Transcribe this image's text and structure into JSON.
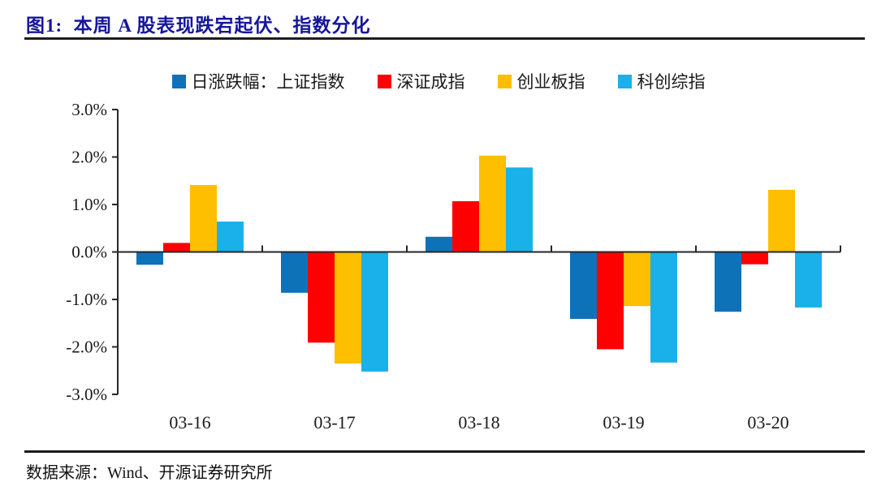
{
  "figure": {
    "title": "图1:  本周 A 股表现跌宕起伏、指数分化",
    "title_color": "#16169b",
    "rule_color": "#1c1c1c",
    "source": "数据来源：Wind、开源证券研究所"
  },
  "chart_data": {
    "type": "bar",
    "title": "图1: 本周 A 股表现跌宕起伏、指数分化",
    "categories": [
      "03-16",
      "03-17",
      "03-18",
      "03-19",
      "03-20"
    ],
    "series": [
      {
        "name": "日涨跌幅：上证指数",
        "color": "#0e72b9",
        "values": [
          -0.27,
          -0.86,
          0.32,
          -1.41,
          -1.26
        ]
      },
      {
        "name": "深证成指",
        "color": "#fd0100",
        "values": [
          0.19,
          -1.91,
          1.07,
          -2.05,
          -0.26
        ]
      },
      {
        "name": "创业板指",
        "color": "#fdbf00",
        "values": [
          1.41,
          -2.35,
          2.03,
          -1.14,
          1.31
        ]
      },
      {
        "name": "科创综指",
        "color": "#1ab0e9",
        "values": [
          0.64,
          -2.52,
          1.78,
          -2.33,
          -1.17
        ]
      }
    ],
    "xlabel": "",
    "ylabel": "",
    "ylim": [
      -3.0,
      3.0
    ],
    "ytick_labels": [
      "3.0%",
      "2.0%",
      "1.0%",
      "0.0%",
      "-1.0%",
      "-2.0%",
      "-3.0%"
    ],
    "grid": false,
    "legend_position": "top",
    "axis_color": "#262626",
    "unit": "percent"
  }
}
